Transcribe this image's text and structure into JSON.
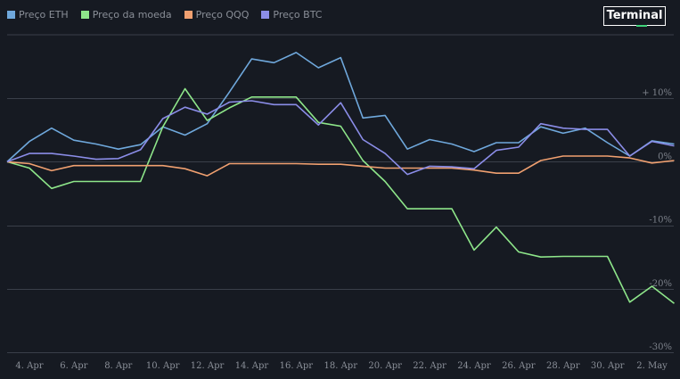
{
  "badge": {
    "label": "Terminal",
    "accent": "#3fd37a"
  },
  "chart_data": {
    "type": "line",
    "title": "",
    "xlabel": "",
    "ylabel": "",
    "ylim": [
      -30,
      20
    ],
    "y_ticks": [
      {
        "value": 10,
        "label": "+ 10%"
      },
      {
        "value": 0,
        "label": "0%"
      },
      {
        "value": -10,
        "label": "-10%"
      },
      {
        "value": -20,
        "label": "-20%"
      },
      {
        "value": -30,
        "label": "-30%"
      }
    ],
    "x": [
      "Apr 3",
      "Apr 4",
      "Apr 5",
      "Apr 6",
      "Apr 7",
      "Apr 8",
      "Apr 9",
      "Apr 10",
      "Apr 11",
      "Apr 12",
      "Apr 13",
      "Apr 14",
      "Apr 15",
      "Apr 16",
      "Apr 17",
      "Apr 18",
      "Apr 19",
      "Apr 20",
      "Apr 21",
      "Apr 22",
      "Apr 23",
      "Apr 24",
      "Apr 25",
      "Apr 26",
      "Apr 27",
      "Apr 28",
      "Apr 29",
      "Apr 30",
      "May 1",
      "May 2",
      "May 3"
    ],
    "x_tick_labels": [
      {
        "index": 1,
        "label": "4. Apr"
      },
      {
        "index": 3,
        "label": "6. Apr"
      },
      {
        "index": 5,
        "label": "8. Apr"
      },
      {
        "index": 7,
        "label": "10. Apr"
      },
      {
        "index": 9,
        "label": "12. Apr"
      },
      {
        "index": 11,
        "label": "14. Apr"
      },
      {
        "index": 13,
        "label": "16. Apr"
      },
      {
        "index": 15,
        "label": "18. Apr"
      },
      {
        "index": 17,
        "label": "20. Apr"
      },
      {
        "index": 19,
        "label": "22. Apr"
      },
      {
        "index": 21,
        "label": "24. Apr"
      },
      {
        "index": 23,
        "label": "26. Apr"
      },
      {
        "index": 25,
        "label": "28. Apr"
      },
      {
        "index": 27,
        "label": "30. Apr"
      },
      {
        "index": 29,
        "label": "2. May"
      }
    ],
    "grid": true,
    "legend_position": "top-left",
    "series": [
      {
        "name": "Preço ETH",
        "color": "#6fa8dc",
        "values": [
          0,
          3.2,
          5.3,
          3.4,
          2.8,
          2.0,
          2.7,
          5.5,
          4.2,
          6.0,
          11.0,
          16.2,
          15.6,
          17.2,
          14.8,
          16.4,
          6.9,
          7.3,
          2.0,
          3.5,
          2.8,
          1.6,
          3.0,
          3.0,
          5.5,
          4.5,
          5.3,
          3.0,
          0.9,
          3.3,
          2.8
        ]
      },
      {
        "name": "Preço da moeda",
        "color": "#8ee68a",
        "values": [
          0,
          -1,
          -4.2,
          -3.1,
          -3.1,
          -3.1,
          -3.1,
          5.5,
          11.5,
          6.5,
          8.5,
          10.2,
          10.2,
          10.2,
          6.2,
          5.6,
          0.2,
          -3.1,
          -7.4,
          -7.4,
          -7.4,
          -13.9,
          -10.3,
          -14.2,
          -15.0,
          -14.9,
          -14.9,
          -14.9,
          -22.1,
          -19.6,
          -22.3
        ]
      },
      {
        "name": "Preço QQQ",
        "color": "#f0a070",
        "values": [
          0,
          -0.3,
          -1.4,
          -0.6,
          -0.6,
          -0.6,
          -0.6,
          -0.6,
          -1.1,
          -2.2,
          -0.3,
          -0.3,
          -0.3,
          -0.3,
          -0.4,
          -0.4,
          -0.7,
          -1.0,
          -1.0,
          -1.0,
          -1.0,
          -1.3,
          -1.8,
          -1.8,
          0.2,
          0.9,
          0.9,
          0.9,
          0.6,
          -0.2,
          0.2
        ]
      },
      {
        "name": "Preço BTC",
        "color": "#8b8de8",
        "values": [
          0,
          1.3,
          1.3,
          0.9,
          0.4,
          0.5,
          1.9,
          6.8,
          8.6,
          7.5,
          9.4,
          9.6,
          9.0,
          9.0,
          5.8,
          9.3,
          3.5,
          1.3,
          -2.0,
          -0.7,
          -0.8,
          -1.1,
          1.8,
          2.3,
          6.0,
          5.3,
          5.1,
          5.1,
          0.9,
          3.2,
          2.5
        ]
      }
    ]
  }
}
